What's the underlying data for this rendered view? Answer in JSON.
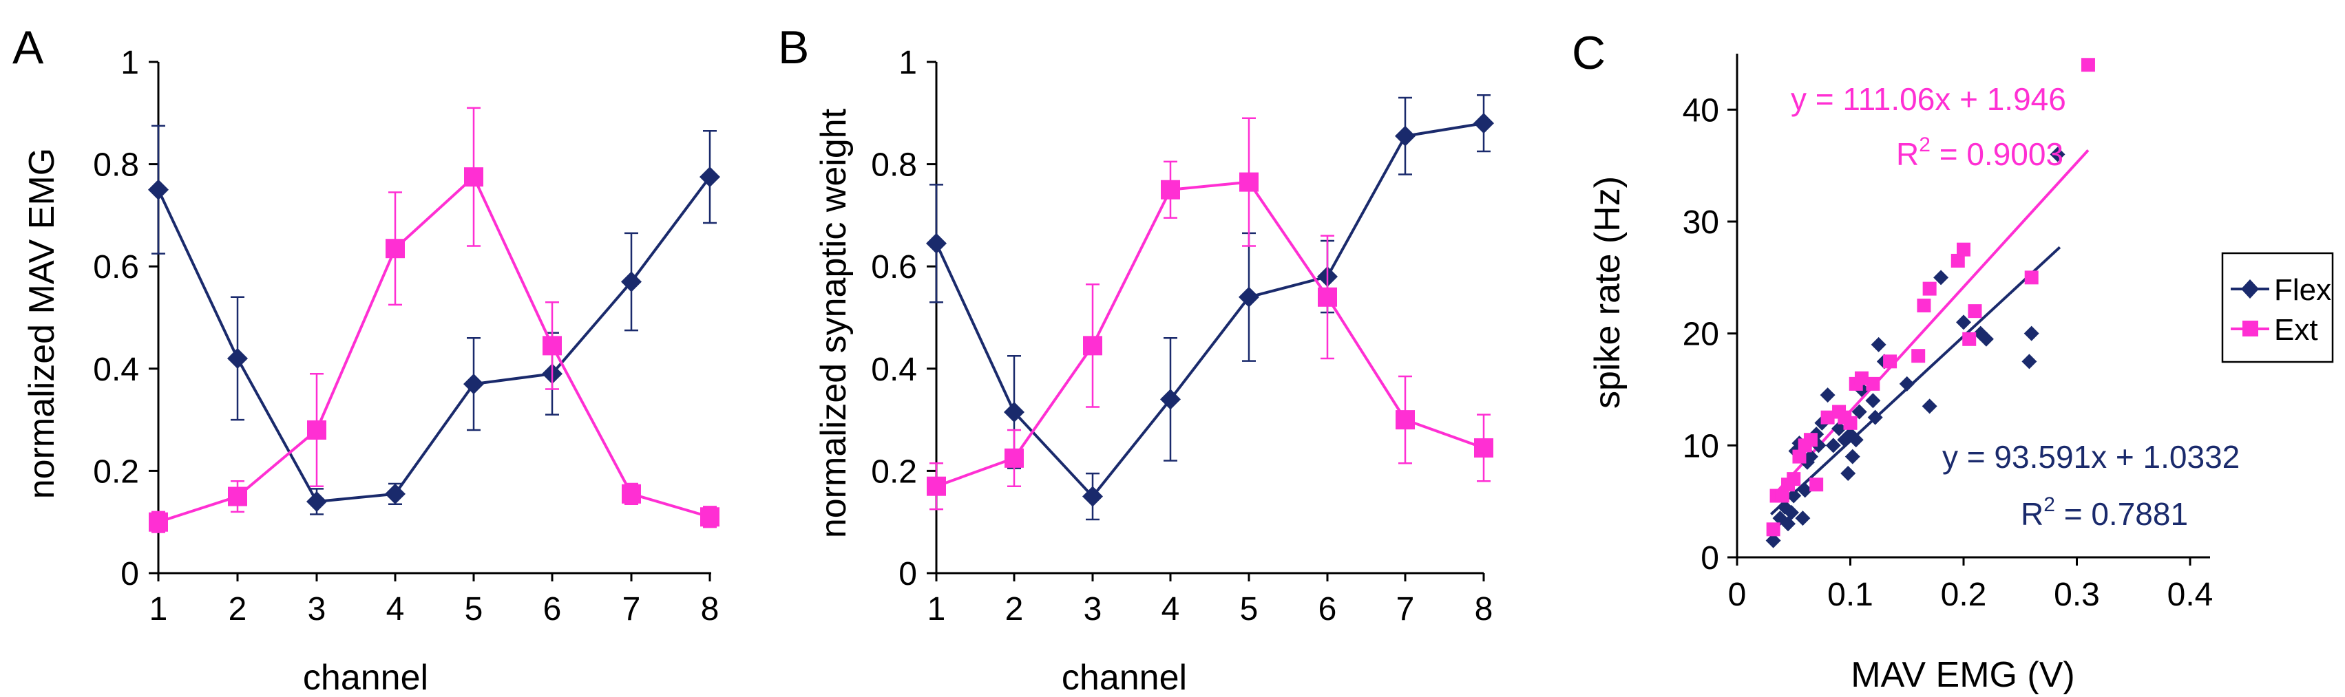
{
  "figure": {
    "colors": {
      "flex": "#1a2a6c",
      "ext": "#ff2fd3",
      "axis": "#000000"
    }
  },
  "chart_data": [
    {
      "panel": "A",
      "type": "line",
      "xlabel": "channel",
      "ylabel": "normalized MAV EMG",
      "xlim": [
        1,
        8
      ],
      "ylim": [
        0,
        1
      ],
      "x_ticks": [
        "1",
        "2",
        "3",
        "4",
        "5",
        "6",
        "7",
        "8"
      ],
      "y_ticks": [
        "0",
        "0.2",
        "0.4",
        "0.6",
        "0.8",
        "1"
      ],
      "x": [
        1,
        2,
        3,
        4,
        5,
        6,
        7,
        8
      ],
      "series": [
        {
          "name": "Flex",
          "color": "#1a2a6c",
          "marker": "diamond",
          "values": [
            0.75,
            0.42,
            0.14,
            0.155,
            0.37,
            0.39,
            0.57,
            0.775
          ],
          "errors": [
            0.125,
            0.12,
            0.025,
            0.02,
            0.09,
            0.08,
            0.095,
            0.09
          ]
        },
        {
          "name": "Ext",
          "color": "#ff2fd3",
          "marker": "square",
          "values": [
            0.1,
            0.15,
            0.28,
            0.635,
            0.775,
            0.445,
            0.155,
            0.11
          ],
          "errors": [
            0.02,
            0.03,
            0.11,
            0.11,
            0.135,
            0.085,
            0.02,
            0.02
          ]
        }
      ]
    },
    {
      "panel": "B",
      "type": "line",
      "xlabel": "channel",
      "ylabel": "normalized synaptic weight",
      "xlim": [
        1,
        8
      ],
      "ylim": [
        0,
        1
      ],
      "x_ticks": [
        "1",
        "2",
        "3",
        "4",
        "5",
        "6",
        "7",
        "8"
      ],
      "y_ticks": [
        "0",
        "0.2",
        "0.4",
        "0.6",
        "0.8",
        "1"
      ],
      "x": [
        1,
        2,
        3,
        4,
        5,
        6,
        7,
        8
      ],
      "series": [
        {
          "name": "Flex",
          "color": "#1a2a6c",
          "marker": "diamond",
          "values": [
            0.645,
            0.315,
            0.15,
            0.34,
            0.54,
            0.58,
            0.855,
            0.88
          ],
          "errors": [
            0.115,
            0.11,
            0.045,
            0.12,
            0.125,
            0.07,
            0.075,
            0.055
          ]
        },
        {
          "name": "Ext",
          "color": "#ff2fd3",
          "marker": "square",
          "values": [
            0.17,
            0.225,
            0.445,
            0.75,
            0.765,
            0.54,
            0.3,
            0.245
          ],
          "errors": [
            0.045,
            0.055,
            0.12,
            0.055,
            0.125,
            0.12,
            0.085,
            0.065
          ]
        }
      ]
    },
    {
      "panel": "C",
      "type": "scatter",
      "xlabel": "MAV EMG (V)",
      "ylabel": "spike rate (Hz)",
      "xlim": [
        0,
        0.4
      ],
      "ylim": [
        0,
        45
      ],
      "x_ticks": [
        "0",
        "0.1",
        "0.2",
        "0.3",
        "0.4"
      ],
      "y_ticks": [
        "0",
        "10",
        "20",
        "30",
        "40"
      ],
      "legend": {
        "position": "right",
        "entries": [
          "Flex",
          "Ext"
        ]
      },
      "series": [
        {
          "name": "Flex",
          "color": "#1a2a6c",
          "marker": "diamond",
          "fit": {
            "slope": 93.591,
            "intercept": 1.0332,
            "x_range": [
              0.03,
              0.285
            ]
          },
          "points": [
            [
              0.032,
              1.5
            ],
            [
              0.038,
              3.5
            ],
            [
              0.042,
              4.5
            ],
            [
              0.045,
              3.0
            ],
            [
              0.048,
              4.0
            ],
            [
              0.05,
              5.5
            ],
            [
              0.052,
              9.5
            ],
            [
              0.055,
              10.2
            ],
            [
              0.058,
              3.5
            ],
            [
              0.06,
              6.0
            ],
            [
              0.062,
              8.5
            ],
            [
              0.065,
              9.0
            ],
            [
              0.07,
              11.0
            ],
            [
              0.072,
              10.0
            ],
            [
              0.075,
              12.0
            ],
            [
              0.08,
              14.5
            ],
            [
              0.085,
              10.0
            ],
            [
              0.09,
              11.5
            ],
            [
              0.095,
              10.5
            ],
            [
              0.098,
              7.5
            ],
            [
              0.1,
              11.0
            ],
            [
              0.102,
              9.0
            ],
            [
              0.105,
              10.5
            ],
            [
              0.108,
              13.0
            ],
            [
              0.11,
              15.0
            ],
            [
              0.12,
              14.0
            ],
            [
              0.122,
              12.5
            ],
            [
              0.125,
              19.0
            ],
            [
              0.13,
              17.5
            ],
            [
              0.15,
              15.5
            ],
            [
              0.17,
              13.5
            ],
            [
              0.18,
              25.0
            ],
            [
              0.2,
              21.0
            ],
            [
              0.215,
              20.0
            ],
            [
              0.22,
              19.5
            ],
            [
              0.258,
              17.5
            ],
            [
              0.26,
              20.0
            ],
            [
              0.283,
              36.0
            ]
          ]
        },
        {
          "name": "Ext",
          "color": "#ff2fd3",
          "marker": "square",
          "fit": {
            "slope": 111.06,
            "intercept": 1.946,
            "x_range": [
              0.03,
              0.31
            ]
          },
          "points": [
            [
              0.032,
              2.5
            ],
            [
              0.035,
              5.5
            ],
            [
              0.04,
              5.5
            ],
            [
              0.045,
              6.5
            ],
            [
              0.05,
              7.0
            ],
            [
              0.055,
              9.0
            ],
            [
              0.06,
              10.0
            ],
            [
              0.065,
              10.5
            ],
            [
              0.07,
              6.5
            ],
            [
              0.08,
              12.5
            ],
            [
              0.09,
              13.0
            ],
            [
              0.095,
              12.5
            ],
            [
              0.1,
              12.0
            ],
            [
              0.105,
              15.5
            ],
            [
              0.11,
              16.0
            ],
            [
              0.12,
              15.5
            ],
            [
              0.135,
              17.5
            ],
            [
              0.16,
              18.0
            ],
            [
              0.165,
              22.5
            ],
            [
              0.17,
              24.0
            ],
            [
              0.195,
              26.5
            ],
            [
              0.2,
              27.5
            ],
            [
              0.205,
              19.5
            ],
            [
              0.21,
              22.0
            ],
            [
              0.26,
              25.0
            ],
            [
              0.31,
              44.0
            ]
          ]
        }
      ],
      "annotations": [
        {
          "series": "Ext",
          "equation": "y = 111.06x + 1.946",
          "r2_label": "R",
          "r2_sup": "2",
          "r2_value": " = 0.9003"
        },
        {
          "series": "Flex",
          "equation": "y = 93.591x + 1.0332",
          "r2_label": "R",
          "r2_sup": "2",
          "r2_value": " = 0.7881"
        }
      ]
    }
  ]
}
